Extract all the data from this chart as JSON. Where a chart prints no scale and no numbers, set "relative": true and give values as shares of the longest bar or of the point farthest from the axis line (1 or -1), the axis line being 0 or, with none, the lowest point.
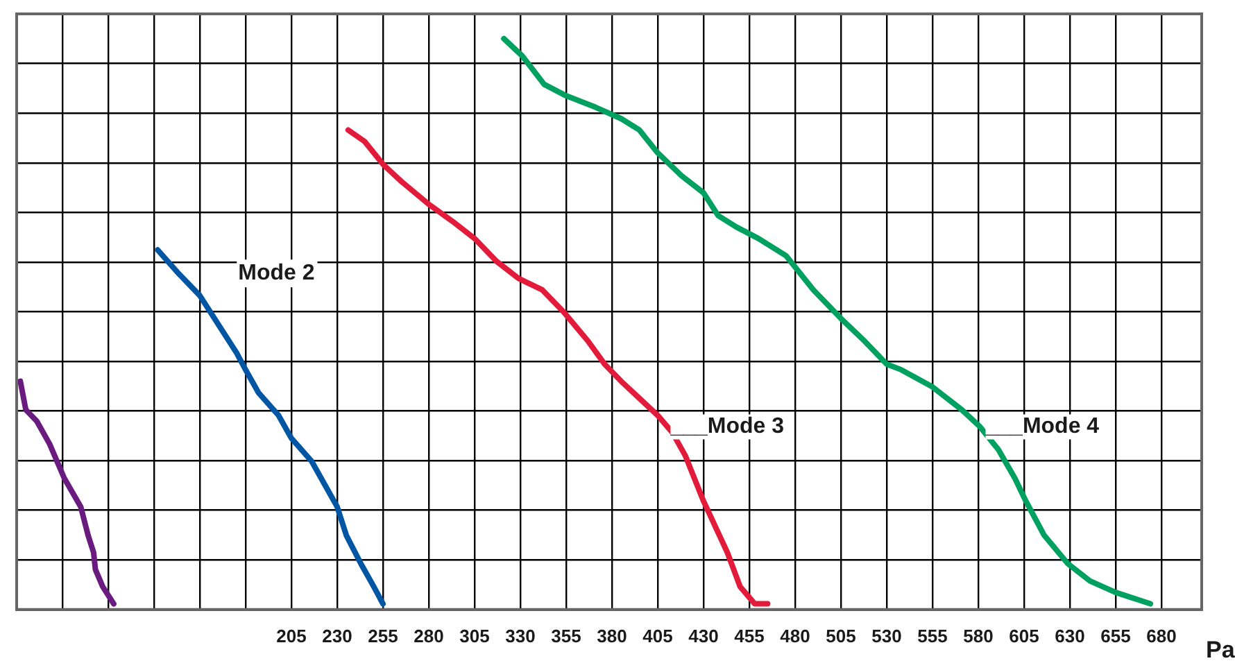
{
  "chart_data": {
    "type": "line",
    "xlabel": "Pa",
    "relative": true,
    "grid": true,
    "legend": false,
    "tick_labels": "x",
    "marker": "none",
    "line_style": "solid",
    "xlim": [
      55,
      702
    ],
    "xticks": [
      {
        "value": 55,
        "label": null
      },
      {
        "value": 80,
        "label": null
      },
      {
        "value": 105,
        "label": null
      },
      {
        "value": 130,
        "label": null
      },
      {
        "value": 155,
        "label": null
      },
      {
        "value": 180,
        "label": null
      },
      205,
      230,
      255,
      280,
      305,
      330,
      355,
      380,
      405,
      430,
      455,
      480,
      505,
      530,
      555,
      580,
      605,
      630,
      655,
      680
    ],
    "series": [
      {
        "color": "#6a1b7f",
        "x": [
          57,
          60,
          66,
          73,
          81,
          90,
          94,
          97,
          98,
          102,
          108
        ],
        "values": [
          0.4,
          0.35,
          0.33,
          0.29,
          0.23,
          0.18,
          0.13,
          0.1,
          0.07,
          0.04,
          0.01
        ]
      },
      {
        "name": "Mode 2",
        "color": "#0056a3",
        "x": [
          132,
          143,
          155,
          165,
          175,
          180,
          187,
          198,
          205,
          216,
          223,
          230,
          235,
          243,
          250,
          255
        ],
        "values": [
          0.63,
          0.59,
          0.55,
          0.5,
          0.45,
          0.42,
          0.38,
          0.34,
          0.3,
          0.26,
          0.22,
          0.18,
          0.13,
          0.08,
          0.04,
          0.01
        ]
      },
      {
        "color": "#e31b3b",
        "x": [
          236,
          245,
          255,
          265,
          280,
          293,
          305,
          317,
          329,
          342,
          354,
          367,
          376,
          385,
          395,
          405,
          413,
          420,
          430,
          443,
          450,
          458,
          465
        ],
        "values": [
          0.84,
          0.82,
          0.78,
          0.75,
          0.71,
          0.68,
          0.65,
          0.61,
          0.58,
          0.56,
          0.52,
          0.47,
          0.43,
          0.4,
          0.37,
          0.34,
          0.31,
          0.27,
          0.19,
          0.1,
          0.04,
          0.01,
          0.01
        ]
      },
      {
        "color": "#00a060",
        "x": [
          321,
          331,
          343,
          355,
          371,
          385,
          395,
          405,
          418,
          430,
          438,
          448,
          460,
          475,
          490,
          505,
          518,
          530,
          538,
          555,
          571,
          581,
          591,
          600,
          606,
          616,
          629,
          641,
          655,
          674
        ],
        "values": [
          1.0,
          0.97,
          0.92,
          0.9,
          0.88,
          0.86,
          0.84,
          0.8,
          0.76,
          0.73,
          0.69,
          0.67,
          0.65,
          0.62,
          0.56,
          0.51,
          0.47,
          0.43,
          0.42,
          0.39,
          0.35,
          0.32,
          0.28,
          0.23,
          0.19,
          0.13,
          0.08,
          0.05,
          0.03,
          0.01
        ]
      }
    ],
    "annotations": [
      {
        "text": "___Mode 3",
        "x": 412,
        "y": 0.32
      },
      {
        "text": "___Mode 4",
        "x": 584,
        "y": 0.32
      }
    ]
  }
}
